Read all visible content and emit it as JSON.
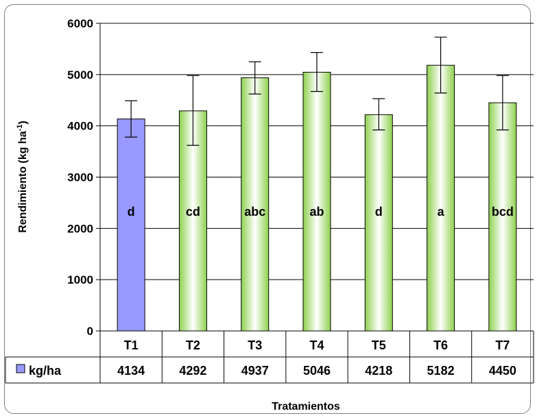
{
  "chart_data": {
    "type": "bar",
    "ylabel": "Rendimiento (kg ha",
    "ylabel_sup": "-1",
    "ylabel_close": ")",
    "xlabel": "Tratamientos",
    "ylim": [
      0,
      6000
    ],
    "yticks": [
      "0",
      "1000",
      "2000",
      "3000",
      "4000",
      "5000",
      "6000"
    ],
    "categories": [
      "T1",
      "T2",
      "T3",
      "T4",
      "T5",
      "T6",
      "T7"
    ],
    "series": [
      {
        "name": "kg/ha",
        "values": [
          4134,
          4292,
          4937,
          5046,
          4218,
          5182,
          4450
        ],
        "error_low": [
          3780,
          3620,
          4620,
          4670,
          3920,
          4640,
          3920
        ],
        "error_high": [
          4490,
          4980,
          5250,
          5430,
          4530,
          5730,
          4980
        ],
        "letters": [
          "d",
          "cd",
          "abc",
          "ab",
          "d",
          "a",
          "bcd"
        ],
        "table_labels": [
          "4134",
          "4292",
          "4937",
          "5046",
          "4218",
          "5182",
          "4450"
        ]
      }
    ],
    "grid": true,
    "legend": "data-table",
    "colors": {
      "control_fill": "#9999ff",
      "treatment_fill_edge": "#8fd14f",
      "treatment_fill_center": "#ffffff",
      "gridline": "#000000"
    }
  }
}
